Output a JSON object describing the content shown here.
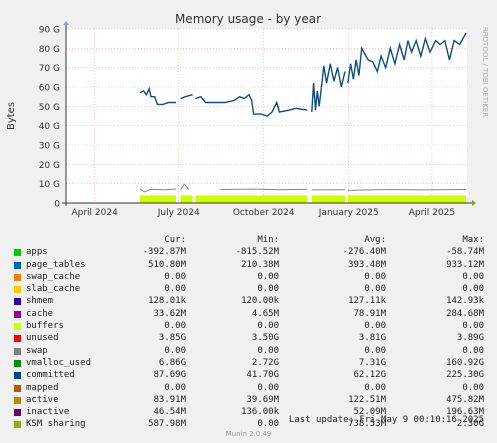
{
  "chart_data": {
    "type": "area",
    "title": "Memory usage - by year",
    "ylabel": "Bytes",
    "side_label": "RRDTOOL / TOBI OETIKER",
    "y_unit": "G",
    "ylim": [
      0,
      90
    ],
    "y_ticks": [
      "0",
      "10 G",
      "20 G",
      "30 G",
      "40 G",
      "50 G",
      "60 G",
      "70 G",
      "80 G",
      "90 G"
    ],
    "y_tick_values": [
      0,
      10,
      20,
      30,
      40,
      50,
      60,
      70,
      80,
      90
    ],
    "x_range": [
      "2024-03-01",
      "2025-05-09"
    ],
    "x_ticks": [
      {
        "label": "April 2024",
        "date": "2024-04-01"
      },
      {
        "label": "July 2024",
        "date": "2024-07-01"
      },
      {
        "label": "October 2024",
        "date": "2024-10-01"
      },
      {
        "label": "January 2025",
        "date": "2025-01-01"
      },
      {
        "label": "April 2025",
        "date": "2025-04-01"
      }
    ],
    "grid": true,
    "data_segments": [
      [
        "2024-05-20",
        "2024-06-28"
      ],
      [
        "2024-07-03",
        "2024-07-16"
      ],
      [
        "2024-07-19",
        "2024-11-17"
      ],
      [
        "2024-11-22",
        "2024-12-28"
      ],
      [
        "2024-12-31",
        "2025-05-08"
      ]
    ],
    "series": [
      {
        "name": "unused",
        "color": "#ccff00",
        "points": [
          [
            "2024-05-20",
            3.9
          ],
          [
            "2024-08-15",
            3.8
          ],
          [
            "2024-11-17",
            3.9
          ],
          [
            "2025-01-20",
            3.8
          ],
          [
            "2025-05-08",
            3.9
          ]
        ]
      },
      {
        "name": "vmalloc_used",
        "color": "#888888",
        "points": [
          [
            "2024-05-20",
            7.2
          ],
          [
            "2024-05-25",
            5.8
          ],
          [
            "2024-06-01",
            7.1
          ],
          [
            "2024-06-15",
            6.9
          ],
          [
            "2024-06-28",
            7.2
          ],
          [
            "2024-06-29",
            11.5
          ],
          [
            "2024-07-03",
            6.7
          ],
          [
            "2024-07-07",
            9.8
          ],
          [
            "2024-07-12",
            6.9
          ],
          [
            "2024-08-15",
            7.0
          ],
          [
            "2024-09-20",
            7.2
          ],
          [
            "2024-10-20",
            6.9
          ],
          [
            "2024-11-17",
            7.1
          ],
          [
            "2024-11-22",
            6.8
          ],
          [
            "2024-12-28",
            6.9
          ],
          [
            "2024-12-31",
            6.5
          ],
          [
            "2025-02-15",
            7.0
          ],
          [
            "2025-03-20",
            6.8
          ],
          [
            "2025-05-08",
            7.0
          ]
        ]
      },
      {
        "name": "committed",
        "color": "#0f4c81",
        "points": [
          [
            "2024-05-20",
            57
          ],
          [
            "2024-05-24",
            58
          ],
          [
            "2024-05-27",
            56
          ],
          [
            "2024-05-30",
            59
          ],
          [
            "2024-06-01",
            55
          ],
          [
            "2024-06-05",
            55
          ],
          [
            "2024-06-08",
            51
          ],
          [
            "2024-06-14",
            51
          ],
          [
            "2024-06-20",
            52
          ],
          [
            "2024-06-28",
            52
          ],
          [
            "2024-07-03",
            54
          ],
          [
            "2024-07-08",
            55
          ],
          [
            "2024-07-16",
            56
          ],
          [
            "2024-07-19",
            54
          ],
          [
            "2024-07-25",
            55
          ],
          [
            "2024-07-30",
            52
          ],
          [
            "2024-08-10",
            52
          ],
          [
            "2024-08-20",
            52
          ],
          [
            "2024-08-30",
            53
          ],
          [
            "2024-09-05",
            55
          ],
          [
            "2024-09-10",
            54
          ],
          [
            "2024-09-15",
            56
          ],
          [
            "2024-09-18",
            53
          ],
          [
            "2024-09-20",
            46
          ],
          [
            "2024-09-28",
            46
          ],
          [
            "2024-10-05",
            45
          ],
          [
            "2024-10-10",
            47
          ],
          [
            "2024-10-15",
            52
          ],
          [
            "2024-10-18",
            47
          ],
          [
            "2024-10-28",
            48
          ],
          [
            "2024-11-05",
            49
          ],
          [
            "2024-11-17",
            48
          ],
          [
            "2024-11-22",
            47
          ],
          [
            "2024-11-24",
            62
          ],
          [
            "2024-11-26",
            48
          ],
          [
            "2024-11-28",
            58
          ],
          [
            "2024-11-30",
            50
          ],
          [
            "2024-12-03",
            62
          ],
          [
            "2024-12-05",
            71
          ],
          [
            "2024-12-08",
            62
          ],
          [
            "2024-12-12",
            72
          ],
          [
            "2024-12-16",
            63
          ],
          [
            "2024-12-20",
            70
          ],
          [
            "2024-12-24",
            60
          ],
          [
            "2024-12-28",
            68
          ],
          [
            "2024-12-31",
            62
          ],
          [
            "2025-01-03",
            72
          ],
          [
            "2025-01-06",
            64
          ],
          [
            "2025-01-09",
            74
          ],
          [
            "2025-01-12",
            66
          ],
          [
            "2025-01-15",
            80
          ],
          [
            "2025-01-22",
            74
          ],
          [
            "2025-01-27",
            73
          ],
          [
            "2025-02-01",
            68
          ],
          [
            "2025-02-05",
            76
          ],
          [
            "2025-02-10",
            70
          ],
          [
            "2025-02-15",
            80
          ],
          [
            "2025-02-20",
            72
          ],
          [
            "2025-02-25",
            82
          ],
          [
            "2025-03-02",
            74
          ],
          [
            "2025-03-06",
            84
          ],
          [
            "2025-03-10",
            78
          ],
          [
            "2025-03-15",
            84
          ],
          [
            "2025-03-20",
            76
          ],
          [
            "2025-03-25",
            85
          ],
          [
            "2025-03-30",
            78
          ],
          [
            "2025-04-05",
            84
          ],
          [
            "2025-04-10",
            82
          ],
          [
            "2025-04-15",
            84
          ],
          [
            "2025-04-20",
            74
          ],
          [
            "2025-04-25",
            84
          ],
          [
            "2025-05-01",
            82
          ],
          [
            "2025-05-08",
            88
          ]
        ]
      }
    ]
  },
  "legend": {
    "headers": [
      "Cur:",
      "Min:",
      "Avg:",
      "Max:"
    ],
    "rows": [
      {
        "name": "apps",
        "color": "#00cc00",
        "cur": "-392.87M",
        "min": "-815.52M",
        "avg": "-276.40M",
        "max": "-58.74M"
      },
      {
        "name": "page_tables",
        "color": "#0066b3",
        "cur": "510.80M",
        "min": "210.38M",
        "avg": "393.48M",
        "max": "933.12M"
      },
      {
        "name": "swap_cache",
        "color": "#ff8000",
        "cur": "0.00",
        "min": "0.00",
        "avg": "0.00",
        "max": "0.00"
      },
      {
        "name": "slab_cache",
        "color": "#ffcc00",
        "cur": "0.00",
        "min": "0.00",
        "avg": "0.00",
        "max": "0.00"
      },
      {
        "name": "shmem",
        "color": "#330099",
        "cur": "128.01k",
        "min": "120.00k",
        "avg": "127.11k",
        "max": "142.93k"
      },
      {
        "name": "cache",
        "color": "#990099",
        "cur": "33.62M",
        "min": "4.65M",
        "avg": "78.91M",
        "max": "284.68M"
      },
      {
        "name": "buffers",
        "color": "#ccff00",
        "cur": "0.00",
        "min": "0.00",
        "avg": "0.00",
        "max": "0.00"
      },
      {
        "name": "unused",
        "color": "#ff0000",
        "cur": "3.85G",
        "min": "3.50G",
        "avg": "3.81G",
        "max": "3.89G"
      },
      {
        "name": "swap",
        "color": "#808080",
        "cur": "0.00",
        "min": "0.00",
        "avg": "0.00",
        "max": "0.00"
      },
      {
        "name": "vmalloc_used",
        "color": "#008f00",
        "cur": "6.86G",
        "min": "2.72G",
        "avg": "7.31G",
        "max": "160.92G"
      },
      {
        "name": "committed",
        "color": "#00487d",
        "cur": "87.69G",
        "min": "41.70G",
        "avg": "62.12G",
        "max": "225.30G"
      },
      {
        "name": "mapped",
        "color": "#b35a00",
        "cur": "0.00",
        "min": "0.00",
        "avg": "0.00",
        "max": "0.00"
      },
      {
        "name": "active",
        "color": "#b38f00",
        "cur": "83.91M",
        "min": "39.69M",
        "avg": "122.51M",
        "max": "475.82M"
      },
      {
        "name": "inactive",
        "color": "#6b006b",
        "cur": "46.54M",
        "min": "136.00k",
        "avg": "52.09M",
        "max": "196.63M"
      },
      {
        "name": "KSM sharing",
        "color": "#8fb300",
        "cur": "587.98M",
        "min": "0.00",
        "avg": "738.53M",
        "max": "2.30G"
      }
    ]
  },
  "footer": {
    "last_update": "Last update: Fri May  9 00:10:16 2025",
    "munin": "Munin 2.0.49"
  }
}
